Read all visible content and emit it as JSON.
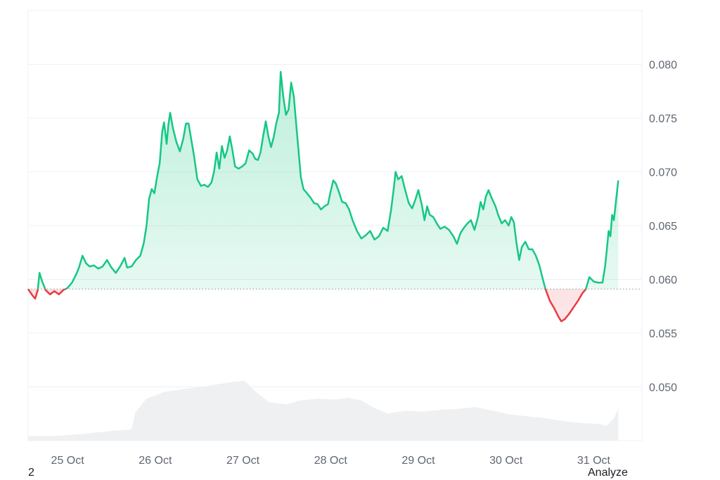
{
  "chart_data": {
    "type": "line",
    "baseline": 0.0591,
    "ylim": [
      0.045,
      0.085
    ],
    "yticks": [
      "0.080",
      "0.075",
      "0.070",
      "0.065",
      "0.060",
      "0.055",
      "0.050"
    ],
    "ytick_values": [
      0.08,
      0.075,
      0.07,
      0.065,
      0.06,
      0.055,
      0.05
    ],
    "xticks": [
      "25 Oct",
      "26 Oct",
      "27 Oct",
      "28 Oct",
      "29 Oct",
      "30 Oct",
      "31 Oct"
    ],
    "xtick_values": [
      0.45,
      1.45,
      2.45,
      3.45,
      4.45,
      5.45,
      6.45
    ],
    "xlim": [
      0.0,
      7.0
    ],
    "series": [
      {
        "points": [
          [
            0.0,
            0.0591
          ],
          [
            0.05,
            0.0585
          ],
          [
            0.08,
            0.0582
          ],
          [
            0.11,
            0.059
          ],
          [
            0.13,
            0.0606
          ],
          [
            0.16,
            0.0598
          ],
          [
            0.2,
            0.059
          ],
          [
            0.25,
            0.0586
          ],
          [
            0.3,
            0.0589
          ],
          [
            0.35,
            0.0586
          ],
          [
            0.4,
            0.059
          ],
          [
            0.45,
            0.0592
          ],
          [
            0.5,
            0.0597
          ],
          [
            0.55,
            0.0605
          ],
          [
            0.58,
            0.0611
          ],
          [
            0.62,
            0.0622
          ],
          [
            0.66,
            0.0615
          ],
          [
            0.7,
            0.0612
          ],
          [
            0.75,
            0.0613
          ],
          [
            0.8,
            0.061
          ],
          [
            0.85,
            0.0612
          ],
          [
            0.9,
            0.0618
          ],
          [
            0.95,
            0.0611
          ],
          [
            1.0,
            0.0606
          ],
          [
            1.05,
            0.0612
          ],
          [
            1.1,
            0.062
          ],
          [
            1.13,
            0.0611
          ],
          [
            1.18,
            0.0612
          ],
          [
            1.23,
            0.0618
          ],
          [
            1.28,
            0.0622
          ],
          [
            1.32,
            0.0634
          ],
          [
            1.35,
            0.065
          ],
          [
            1.38,
            0.0675
          ],
          [
            1.41,
            0.0684
          ],
          [
            1.44,
            0.068
          ],
          [
            1.47,
            0.0695
          ],
          [
            1.5,
            0.0708
          ],
          [
            1.53,
            0.0738
          ],
          [
            1.55,
            0.0746
          ],
          [
            1.58,
            0.0726
          ],
          [
            1.6,
            0.0744
          ],
          [
            1.62,
            0.0755
          ],
          [
            1.65,
            0.0741
          ],
          [
            1.69,
            0.0728
          ],
          [
            1.73,
            0.0719
          ],
          [
            1.77,
            0.0731
          ],
          [
            1.8,
            0.0745
          ],
          [
            1.83,
            0.0745
          ],
          [
            1.86,
            0.073
          ],
          [
            1.89,
            0.0716
          ],
          [
            1.93,
            0.0693
          ],
          [
            1.97,
            0.0687
          ],
          [
            2.01,
            0.0688
          ],
          [
            2.05,
            0.0686
          ],
          [
            2.09,
            0.069
          ],
          [
            2.12,
            0.07
          ],
          [
            2.15,
            0.0718
          ],
          [
            2.18,
            0.0703
          ],
          [
            2.21,
            0.0724
          ],
          [
            2.24,
            0.0713
          ],
          [
            2.27,
            0.072
          ],
          [
            2.3,
            0.0733
          ],
          [
            2.33,
            0.072
          ],
          [
            2.36,
            0.0705
          ],
          [
            2.4,
            0.0703
          ],
          [
            2.44,
            0.0705
          ],
          [
            2.48,
            0.0708
          ],
          [
            2.52,
            0.072
          ],
          [
            2.56,
            0.0717
          ],
          [
            2.59,
            0.0712
          ],
          [
            2.62,
            0.0711
          ],
          [
            2.65,
            0.0718
          ],
          [
            2.68,
            0.0733
          ],
          [
            2.71,
            0.0747
          ],
          [
            2.74,
            0.0733
          ],
          [
            2.77,
            0.0723
          ],
          [
            2.8,
            0.0732
          ],
          [
            2.83,
            0.0745
          ],
          [
            2.86,
            0.0755
          ],
          [
            2.88,
            0.0793
          ],
          [
            2.91,
            0.077
          ],
          [
            2.94,
            0.0753
          ],
          [
            2.97,
            0.0758
          ],
          [
            3.0,
            0.0783
          ],
          [
            3.03,
            0.077
          ],
          [
            3.07,
            0.0732
          ],
          [
            3.11,
            0.0695
          ],
          [
            3.14,
            0.0684
          ],
          [
            3.18,
            0.068
          ],
          [
            3.22,
            0.0676
          ],
          [
            3.26,
            0.0671
          ],
          [
            3.3,
            0.067
          ],
          [
            3.34,
            0.0665
          ],
          [
            3.38,
            0.0668
          ],
          [
            3.42,
            0.067
          ],
          [
            3.45,
            0.0682
          ],
          [
            3.48,
            0.0692
          ],
          [
            3.51,
            0.0689
          ],
          [
            3.55,
            0.068
          ],
          [
            3.58,
            0.0672
          ],
          [
            3.62,
            0.0671
          ],
          [
            3.66,
            0.0665
          ],
          [
            3.7,
            0.0655
          ],
          [
            3.75,
            0.0645
          ],
          [
            3.8,
            0.0638
          ],
          [
            3.85,
            0.0641
          ],
          [
            3.9,
            0.0645
          ],
          [
            3.95,
            0.0637
          ],
          [
            4.0,
            0.064
          ],
          [
            4.05,
            0.0648
          ],
          [
            4.1,
            0.0645
          ],
          [
            4.14,
            0.0665
          ],
          [
            4.17,
            0.0685
          ],
          [
            4.19,
            0.07
          ],
          [
            4.22,
            0.0693
          ],
          [
            4.26,
            0.0696
          ],
          [
            4.3,
            0.0683
          ],
          [
            4.34,
            0.0671
          ],
          [
            4.38,
            0.0666
          ],
          [
            4.42,
            0.0675
          ],
          [
            4.45,
            0.0683
          ],
          [
            4.49,
            0.0669
          ],
          [
            4.52,
            0.0655
          ],
          [
            4.55,
            0.0668
          ],
          [
            4.58,
            0.066
          ],
          [
            4.62,
            0.0658
          ],
          [
            4.66,
            0.0652
          ],
          [
            4.7,
            0.0647
          ],
          [
            4.75,
            0.0649
          ],
          [
            4.8,
            0.0646
          ],
          [
            4.85,
            0.064
          ],
          [
            4.89,
            0.0633
          ],
          [
            4.93,
            0.0643
          ],
          [
            4.97,
            0.0648
          ],
          [
            5.01,
            0.0652
          ],
          [
            5.05,
            0.0655
          ],
          [
            5.09,
            0.0646
          ],
          [
            5.13,
            0.0658
          ],
          [
            5.16,
            0.0672
          ],
          [
            5.19,
            0.0665
          ],
          [
            5.22,
            0.0677
          ],
          [
            5.25,
            0.0683
          ],
          [
            5.29,
            0.0675
          ],
          [
            5.33,
            0.0668
          ],
          [
            5.36,
            0.066
          ],
          [
            5.4,
            0.0652
          ],
          [
            5.44,
            0.0655
          ],
          [
            5.48,
            0.065
          ],
          [
            5.51,
            0.0658
          ],
          [
            5.54,
            0.0653
          ],
          [
            5.57,
            0.0633
          ],
          [
            5.6,
            0.0618
          ],
          [
            5.63,
            0.063
          ],
          [
            5.67,
            0.0635
          ],
          [
            5.71,
            0.0628
          ],
          [
            5.75,
            0.0628
          ],
          [
            5.79,
            0.0622
          ],
          [
            5.83,
            0.0613
          ],
          [
            5.87,
            0.06
          ],
          [
            5.9,
            0.0591
          ],
          [
            5.95,
            0.058
          ],
          [
            6.0,
            0.0573
          ],
          [
            6.05,
            0.0565
          ],
          [
            6.08,
            0.0561
          ],
          [
            6.12,
            0.0563
          ],
          [
            6.17,
            0.0568
          ],
          [
            6.22,
            0.0574
          ],
          [
            6.27,
            0.058
          ],
          [
            6.32,
            0.0587
          ],
          [
            6.36,
            0.0591
          ],
          [
            6.4,
            0.0602
          ],
          [
            6.45,
            0.0598
          ],
          [
            6.5,
            0.0597
          ],
          [
            6.55,
            0.0597
          ],
          [
            6.58,
            0.0612
          ],
          [
            6.6,
            0.0628
          ],
          [
            6.62,
            0.0645
          ],
          [
            6.64,
            0.064
          ],
          [
            6.66,
            0.066
          ],
          [
            6.68,
            0.0655
          ],
          [
            6.7,
            0.067
          ],
          [
            6.72,
            0.0685
          ],
          [
            6.73,
            0.0692
          ]
        ]
      }
    ],
    "volume": [
      [
        0.0,
        0.5
      ],
      [
        0.3,
        0.5
      ],
      [
        0.6,
        0.7
      ],
      [
        0.9,
        1.0
      ],
      [
        1.18,
        1.2
      ],
      [
        1.22,
        3.0
      ],
      [
        1.35,
        4.5
      ],
      [
        1.55,
        5.2
      ],
      [
        1.75,
        5.5
      ],
      [
        2.0,
        5.8
      ],
      [
        2.2,
        6.1
      ],
      [
        2.35,
        6.3
      ],
      [
        2.47,
        6.4
      ],
      [
        2.6,
        5.2
      ],
      [
        2.75,
        4.1
      ],
      [
        2.95,
        3.9
      ],
      [
        3.1,
        4.3
      ],
      [
        3.3,
        4.5
      ],
      [
        3.5,
        4.4
      ],
      [
        3.65,
        4.6
      ],
      [
        3.8,
        4.3
      ],
      [
        3.95,
        3.5
      ],
      [
        4.1,
        2.9
      ],
      [
        4.3,
        3.2
      ],
      [
        4.5,
        3.1
      ],
      [
        4.7,
        3.3
      ],
      [
        4.9,
        3.4
      ],
      [
        5.1,
        3.6
      ],
      [
        5.3,
        3.2
      ],
      [
        5.5,
        2.8
      ],
      [
        5.7,
        2.6
      ],
      [
        5.9,
        2.4
      ],
      [
        6.1,
        2.1
      ],
      [
        6.3,
        1.9
      ],
      [
        6.5,
        1.8
      ],
      [
        6.6,
        1.6
      ],
      [
        6.68,
        2.4
      ],
      [
        6.73,
        3.4
      ]
    ]
  },
  "colors": {
    "up_line": "#16c784",
    "down_line": "#ea3943",
    "up_fill": "#16c784",
    "down_fill": "#ea3943",
    "volume": "#eef0f2",
    "grid": "#eef0f3",
    "baseline": "#8a9099"
  },
  "footer": {
    "left": "2",
    "right": "Analyze"
  }
}
